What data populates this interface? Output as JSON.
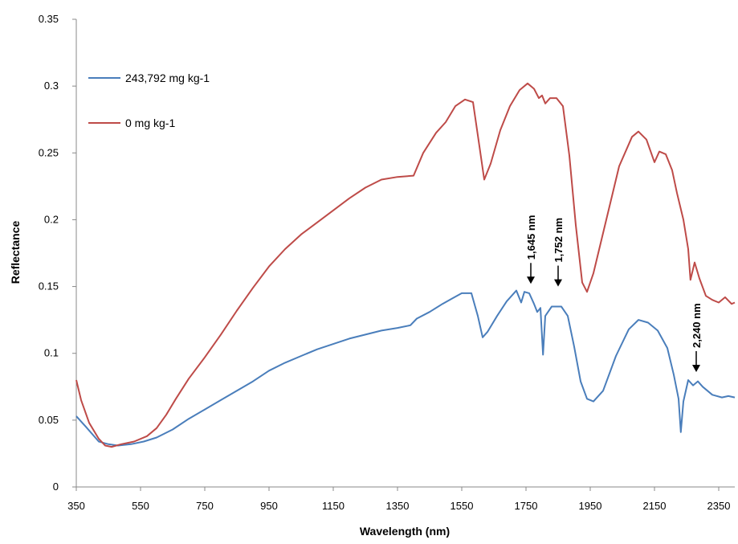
{
  "chart_data": {
    "type": "line",
    "xlabel": "Wavelength (nm)",
    "ylabel": "Reflectance",
    "xlim": [
      350,
      2400
    ],
    "ylim": [
      0,
      0.35
    ],
    "x_ticks": [
      "350",
      "550",
      "750",
      "950",
      "1150",
      "1350",
      "1550",
      "1750",
      "1950",
      "2150",
      "2350"
    ],
    "y_ticks": [
      "0",
      "0.05",
      "0.1",
      "0.15",
      "0.2",
      "0.25",
      "0.3",
      "0.35"
    ],
    "grid": false,
    "legend_position": "top-left",
    "series": [
      {
        "name": "243,792 mg kg-1",
        "color": "#4a7ebb",
        "points": [
          [
            350,
            0.053
          ],
          [
            380,
            0.045
          ],
          [
            420,
            0.034
          ],
          [
            450,
            0.032
          ],
          [
            480,
            0.031
          ],
          [
            520,
            0.032
          ],
          [
            560,
            0.034
          ],
          [
            600,
            0.037
          ],
          [
            650,
            0.043
          ],
          [
            700,
            0.051
          ],
          [
            750,
            0.058
          ],
          [
            800,
            0.065
          ],
          [
            850,
            0.072
          ],
          [
            900,
            0.079
          ],
          [
            950,
            0.087
          ],
          [
            1000,
            0.093
          ],
          [
            1050,
            0.098
          ],
          [
            1100,
            0.103
          ],
          [
            1150,
            0.107
          ],
          [
            1200,
            0.111
          ],
          [
            1250,
            0.114
          ],
          [
            1300,
            0.117
          ],
          [
            1350,
            0.119
          ],
          [
            1390,
            0.121
          ],
          [
            1410,
            0.126
          ],
          [
            1450,
            0.131
          ],
          [
            1490,
            0.137
          ],
          [
            1520,
            0.141
          ],
          [
            1550,
            0.145
          ],
          [
            1580,
            0.145
          ],
          [
            1600,
            0.128
          ],
          [
            1615,
            0.112
          ],
          [
            1630,
            0.116
          ],
          [
            1660,
            0.128
          ],
          [
            1690,
            0.139
          ],
          [
            1720,
            0.147
          ],
          [
            1735,
            0.138
          ],
          [
            1745,
            0.146
          ],
          [
            1760,
            0.145
          ],
          [
            1775,
            0.137
          ],
          [
            1785,
            0.131
          ],
          [
            1795,
            0.134
          ],
          [
            1803,
            0.099
          ],
          [
            1810,
            0.128
          ],
          [
            1830,
            0.135
          ],
          [
            1860,
            0.135
          ],
          [
            1880,
            0.128
          ],
          [
            1900,
            0.105
          ],
          [
            1920,
            0.079
          ],
          [
            1940,
            0.066
          ],
          [
            1960,
            0.064
          ],
          [
            1990,
            0.072
          ],
          [
            2030,
            0.098
          ],
          [
            2070,
            0.118
          ],
          [
            2100,
            0.125
          ],
          [
            2130,
            0.123
          ],
          [
            2160,
            0.117
          ],
          [
            2190,
            0.104
          ],
          [
            2210,
            0.084
          ],
          [
            2225,
            0.066
          ],
          [
            2232,
            0.041
          ],
          [
            2240,
            0.064
          ],
          [
            2255,
            0.08
          ],
          [
            2270,
            0.076
          ],
          [
            2285,
            0.079
          ],
          [
            2300,
            0.075
          ],
          [
            2330,
            0.069
          ],
          [
            2360,
            0.067
          ],
          [
            2380,
            0.068
          ],
          [
            2400,
            0.067
          ]
        ]
      },
      {
        "name": "0 mg kg-1",
        "color": "#be4b48",
        "points": [
          [
            350,
            0.08
          ],
          [
            365,
            0.065
          ],
          [
            390,
            0.048
          ],
          [
            420,
            0.036
          ],
          [
            440,
            0.031
          ],
          [
            460,
            0.03
          ],
          [
            490,
            0.032
          ],
          [
            530,
            0.034
          ],
          [
            570,
            0.038
          ],
          [
            600,
            0.044
          ],
          [
            630,
            0.054
          ],
          [
            660,
            0.066
          ],
          [
            700,
            0.081
          ],
          [
            750,
            0.097
          ],
          [
            800,
            0.114
          ],
          [
            850,
            0.132
          ],
          [
            900,
            0.149
          ],
          [
            950,
            0.165
          ],
          [
            1000,
            0.178
          ],
          [
            1050,
            0.189
          ],
          [
            1100,
            0.198
          ],
          [
            1150,
            0.207
          ],
          [
            1200,
            0.216
          ],
          [
            1250,
            0.224
          ],
          [
            1300,
            0.23
          ],
          [
            1350,
            0.232
          ],
          [
            1400,
            0.233
          ],
          [
            1430,
            0.25
          ],
          [
            1470,
            0.265
          ],
          [
            1500,
            0.273
          ],
          [
            1530,
            0.285
          ],
          [
            1560,
            0.29
          ],
          [
            1585,
            0.288
          ],
          [
            1605,
            0.255
          ],
          [
            1620,
            0.23
          ],
          [
            1640,
            0.242
          ],
          [
            1670,
            0.267
          ],
          [
            1700,
            0.285
          ],
          [
            1730,
            0.297
          ],
          [
            1755,
            0.302
          ],
          [
            1775,
            0.298
          ],
          [
            1790,
            0.291
          ],
          [
            1800,
            0.293
          ],
          [
            1810,
            0.287
          ],
          [
            1825,
            0.291
          ],
          [
            1845,
            0.291
          ],
          [
            1865,
            0.285
          ],
          [
            1885,
            0.248
          ],
          [
            1905,
            0.196
          ],
          [
            1925,
            0.153
          ],
          [
            1940,
            0.146
          ],
          [
            1960,
            0.16
          ],
          [
            2000,
            0.2
          ],
          [
            2040,
            0.24
          ],
          [
            2080,
            0.262
          ],
          [
            2100,
            0.266
          ],
          [
            2125,
            0.26
          ],
          [
            2150,
            0.243
          ],
          [
            2165,
            0.251
          ],
          [
            2185,
            0.249
          ],
          [
            2205,
            0.237
          ],
          [
            2220,
            0.22
          ],
          [
            2240,
            0.2
          ],
          [
            2255,
            0.178
          ],
          [
            2262,
            0.155
          ],
          [
            2275,
            0.168
          ],
          [
            2290,
            0.156
          ],
          [
            2310,
            0.143
          ],
          [
            2330,
            0.14
          ],
          [
            2350,
            0.138
          ],
          [
            2370,
            0.142
          ],
          [
            2390,
            0.137
          ],
          [
            2400,
            0.138
          ]
        ]
      }
    ],
    "annotations": [
      {
        "text": "1,645 nm",
        "x": 1765,
        "y": 0.152
      },
      {
        "text": "1,752 nm",
        "x": 1850,
        "y": 0.15
      },
      {
        "text": "2,240 nm",
        "x": 2280,
        "y": 0.086
      }
    ]
  }
}
